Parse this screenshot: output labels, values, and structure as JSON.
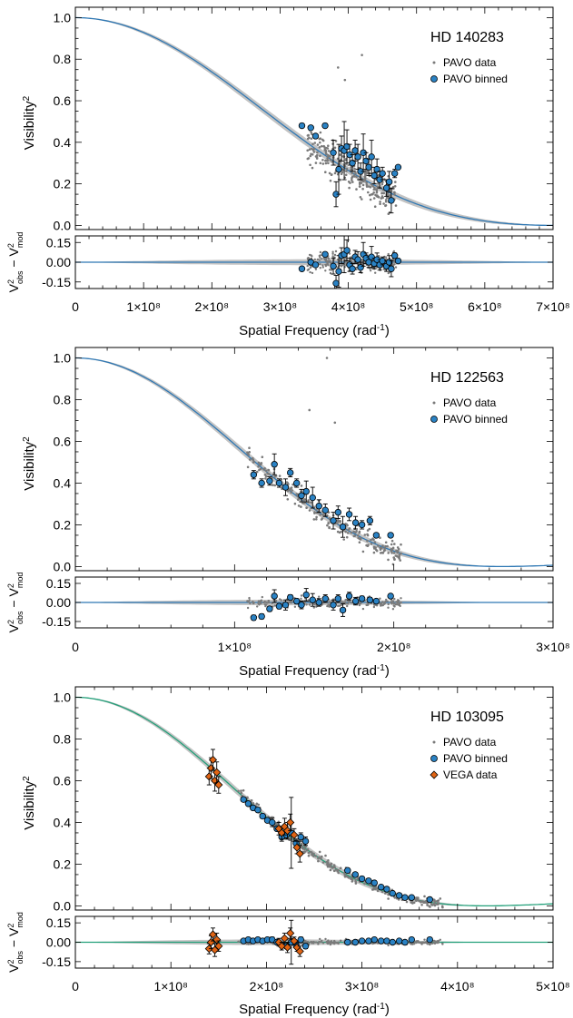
{
  "figure": {
    "legend_labels": {
      "pavo_data": "PAVO data",
      "pavo_binned": "PAVO binned",
      "vega_data": "VEGA data"
    },
    "y_label": "Visibility",
    "y_label_sup": "2",
    "res_label": {
      "v": "V",
      "sup": "2",
      "obs": "obs",
      "minus": " − ",
      "mod": "mod"
    },
    "x_label": "Spatial Frequency (rad",
    "x_label_sup": "-1",
    "x_label_close": ")",
    "colors": {
      "model_blue": "#2f78b4",
      "model_green": "#23a07a",
      "band": "#b8b8b8",
      "pavo_points": "#7a7a7a",
      "binned_fill": "#2a82c4",
      "vega_fill": "#e06414"
    }
  },
  "chart_data": [
    {
      "type": "scatter",
      "title": "HD 140283",
      "xlim": [
        0,
        700000000
      ],
      "ylim": [
        -0.02,
        1.05
      ],
      "res_ylim": [
        -0.2,
        0.2
      ],
      "x_ticks": [
        0,
        100000000,
        200000000,
        300000000,
        400000000,
        500000000,
        600000000,
        700000000
      ],
      "x_tick_labels": [
        "0",
        "1×10⁸",
        "2×10⁸",
        "3×10⁸",
        "4×10⁸",
        "5×10⁸",
        "6×10⁸",
        "7×10⁸"
      ],
      "y_ticks": [
        0.0,
        0.2,
        0.4,
        0.6,
        0.8,
        1.0
      ],
      "y_tick_labels": [
        "0.0",
        "0.2",
        "0.4",
        "0.6",
        "0.8",
        "1.0"
      ],
      "res_ticks": [
        0.15,
        0.0,
        -0.15
      ],
      "res_tick_labels": [
        "0.15",
        "0.00",
        "-0.15"
      ],
      "model": {
        "curve": "uniform_disk",
        "zero_freq": 705000000,
        "color": "model_blue"
      },
      "legend": [
        "pavo_data",
        "pavo_binned"
      ],
      "pavo_data": {
        "x_range": [
          340000000,
          470000000
        ],
        "y_center_from_model": true,
        "scatter": 0.09,
        "count": 260,
        "outliers": [
          [
            420000000,
            0.82
          ],
          [
            385000000,
            0.76
          ],
          [
            395000000,
            0.7
          ]
        ]
      },
      "pavo_binned": [
        {
          "x": 332000000,
          "y": 0.48,
          "err": 0.01,
          "res": -0.05
        },
        {
          "x": 345000000,
          "y": 0.47,
          "err": 0.01,
          "res": 0.0
        },
        {
          "x": 352000000,
          "y": 0.43,
          "err": 0.01,
          "res": -0.02
        },
        {
          "x": 366000000,
          "y": 0.48,
          "err": 0.01,
          "res": 0.06
        },
        {
          "x": 378000000,
          "y": 0.35,
          "err": 0.06,
          "res": -0.03
        },
        {
          "x": 382000000,
          "y": 0.15,
          "err": 0.06,
          "res": -0.16
        },
        {
          "x": 386000000,
          "y": 0.27,
          "err": 0.12,
          "res": -0.07
        },
        {
          "x": 390000000,
          "y": 0.37,
          "err": 0.06,
          "res": 0.05
        },
        {
          "x": 394000000,
          "y": 0.36,
          "err": 0.14,
          "res": 0.06
        },
        {
          "x": 398000000,
          "y": 0.38,
          "err": 0.08,
          "res": 0.09
        },
        {
          "x": 402000000,
          "y": 0.34,
          "err": 0.05,
          "res": -0.02
        },
        {
          "x": 406000000,
          "y": 0.3,
          "err": 0.04,
          "res": -0.05
        },
        {
          "x": 410000000,
          "y": 0.36,
          "err": 0.05,
          "res": 0.04
        },
        {
          "x": 414000000,
          "y": 0.33,
          "err": 0.06,
          "res": 0.02
        },
        {
          "x": 418000000,
          "y": 0.26,
          "err": 0.04,
          "res": -0.04
        },
        {
          "x": 422000000,
          "y": 0.35,
          "err": 0.09,
          "res": 0.06
        },
        {
          "x": 426000000,
          "y": 0.31,
          "err": 0.04,
          "res": 0.03
        },
        {
          "x": 430000000,
          "y": 0.28,
          "err": 0.04,
          "res": 0.0
        },
        {
          "x": 434000000,
          "y": 0.33,
          "err": 0.08,
          "res": 0.04
        },
        {
          "x": 438000000,
          "y": 0.24,
          "err": 0.04,
          "res": -0.01
        },
        {
          "x": 442000000,
          "y": 0.27,
          "err": 0.05,
          "res": 0.02
        },
        {
          "x": 446000000,
          "y": 0.22,
          "err": 0.04,
          "res": -0.02
        },
        {
          "x": 450000000,
          "y": 0.25,
          "err": 0.03,
          "res": 0.01
        },
        {
          "x": 456000000,
          "y": 0.18,
          "err": 0.04,
          "res": -0.03
        },
        {
          "x": 460000000,
          "y": 0.21,
          "err": 0.05,
          "res": 0.0
        },
        {
          "x": 463000000,
          "y": 0.12,
          "err": 0.06,
          "res": -0.05
        },
        {
          "x": 468000000,
          "y": 0.25,
          "err": 0.02,
          "res": 0.05
        },
        {
          "x": 473000000,
          "y": 0.28,
          "err": 0.01,
          "res": 0.01
        }
      ]
    },
    {
      "type": "scatter",
      "title": "HD 122563",
      "xlim": [
        0,
        300000000
      ],
      "ylim": [
        -0.02,
        1.05
      ],
      "res_ylim": [
        -0.2,
        0.2
      ],
      "x_ticks": [
        0,
        100000000,
        200000000,
        300000000
      ],
      "x_tick_labels": [
        "0",
        "1×10⁸",
        "2×10⁸",
        "3×10⁸"
      ],
      "y_ticks": [
        0.0,
        0.2,
        0.4,
        0.6,
        0.8,
        1.0
      ],
      "y_tick_labels": [
        "0.0",
        "0.2",
        "0.4",
        "0.6",
        "0.8",
        "1.0"
      ],
      "res_ticks": [
        0.15,
        0.0,
        -0.15
      ],
      "res_tick_labels": [
        "0.15",
        "0.00",
        "-0.15"
      ],
      "model": {
        "curve": "uniform_disk",
        "zero_freq": 268000000,
        "color": "model_blue"
      },
      "legend": [
        "pavo_data",
        "pavo_binned"
      ],
      "pavo_data": {
        "x_range": [
          108000000,
          205000000
        ],
        "y_center_from_model": true,
        "scatter": 0.05,
        "count": 230,
        "outliers": [
          [
            158000000,
            1.0
          ],
          [
            147000000,
            0.75
          ],
          [
            163000000,
            0.69
          ]
        ]
      },
      "pavo_binned": [
        {
          "x": 112000000,
          "y": 0.44,
          "err": 0.02,
          "res": -0.12
        },
        {
          "x": 117000000,
          "y": 0.4,
          "err": 0.02,
          "res": -0.11
        },
        {
          "x": 122000000,
          "y": 0.41,
          "err": 0.02,
          "res": -0.05
        },
        {
          "x": 125000000,
          "y": 0.49,
          "err": 0.05,
          "res": 0.05
        },
        {
          "x": 128000000,
          "y": 0.4,
          "err": 0.02,
          "res": -0.03
        },
        {
          "x": 132000000,
          "y": 0.38,
          "err": 0.04,
          "res": -0.02
        },
        {
          "x": 135000000,
          "y": 0.45,
          "err": 0.02,
          "res": 0.04
        },
        {
          "x": 139000000,
          "y": 0.4,
          "err": 0.02,
          "res": 0.01
        },
        {
          "x": 142000000,
          "y": 0.34,
          "err": 0.03,
          "res": -0.02
        },
        {
          "x": 145000000,
          "y": 0.36,
          "err": 0.05,
          "res": 0.06
        },
        {
          "x": 149000000,
          "y": 0.33,
          "err": 0.05,
          "res": 0.02
        },
        {
          "x": 153000000,
          "y": 0.29,
          "err": 0.03,
          "res": 0.0
        },
        {
          "x": 157000000,
          "y": 0.27,
          "err": 0.03,
          "res": 0.03
        },
        {
          "x": 162000000,
          "y": 0.22,
          "err": 0.04,
          "res": -0.02
        },
        {
          "x": 165000000,
          "y": 0.26,
          "err": 0.03,
          "res": 0.03
        },
        {
          "x": 168000000,
          "y": 0.19,
          "err": 0.05,
          "res": -0.06
        },
        {
          "x": 172000000,
          "y": 0.25,
          "err": 0.03,
          "res": 0.05
        },
        {
          "x": 176000000,
          "y": 0.21,
          "err": 0.03,
          "res": 0.01
        },
        {
          "x": 180000000,
          "y": 0.2,
          "err": 0.02,
          "res": 0.03
        },
        {
          "x": 185000000,
          "y": 0.22,
          "err": 0.02,
          "res": 0.02
        },
        {
          "x": 189000000,
          "y": 0.15,
          "err": 0.01,
          "res": 0.01
        },
        {
          "x": 198000000,
          "y": 0.15,
          "err": 0.01,
          "res": 0.05
        }
      ]
    },
    {
      "type": "scatter",
      "title": "HD 103095",
      "xlim": [
        0,
        500000000
      ],
      "ylim": [
        -0.02,
        1.05
      ],
      "res_ylim": [
        -0.2,
        0.2
      ],
      "x_ticks": [
        0,
        100000000,
        200000000,
        300000000,
        400000000,
        500000000
      ],
      "x_tick_labels": [
        "0",
        "1×10⁸",
        "2×10⁸",
        "3×10⁸",
        "4×10⁸",
        "5×10⁸"
      ],
      "y_ticks": [
        0.0,
        0.2,
        0.4,
        0.6,
        0.8,
        1.0
      ],
      "y_tick_labels": [
        "0.0",
        "0.2",
        "0.4",
        "0.6",
        "0.8",
        "1.0"
      ],
      "res_ticks": [
        0.15,
        0.0,
        -0.15
      ],
      "res_tick_labels": [
        "0.15",
        "0.00",
        "-0.15"
      ],
      "model": {
        "curve": "uniform_disk",
        "zero_freq": 430000000,
        "color": "model_green"
      },
      "legend": [
        "pavo_data",
        "pavo_binned",
        "vega_data"
      ],
      "pavo_data": {
        "x_range": [
          170000000,
          385000000
        ],
        "y_center_from_model": true,
        "scatter": 0.025,
        "count": 260,
        "outliers": []
      },
      "pavo_binned": [
        {
          "x": 176000000,
          "y": 0.51,
          "err": 0.01,
          "res": 0.01
        },
        {
          "x": 181000000,
          "y": 0.49,
          "err": 0.01,
          "res": 0.02
        },
        {
          "x": 186000000,
          "y": 0.47,
          "err": 0.01,
          "res": 0.01
        },
        {
          "x": 191000000,
          "y": 0.46,
          "err": 0.01,
          "res": 0.02
        },
        {
          "x": 196000000,
          "y": 0.43,
          "err": 0.01,
          "res": 0.01
        },
        {
          "x": 201000000,
          "y": 0.41,
          "err": 0.01,
          "res": 0.02
        },
        {
          "x": 206000000,
          "y": 0.4,
          "err": 0.02,
          "res": 0.02
        },
        {
          "x": 211000000,
          "y": 0.37,
          "err": 0.01,
          "res": 0.0
        },
        {
          "x": 216000000,
          "y": 0.33,
          "err": 0.02,
          "res": -0.02
        },
        {
          "x": 221000000,
          "y": 0.34,
          "err": 0.02,
          "res": -0.03
        },
        {
          "x": 226000000,
          "y": 0.35,
          "err": 0.17,
          "res": 0.0
        },
        {
          "x": 231000000,
          "y": 0.3,
          "err": 0.02,
          "res": -0.02
        },
        {
          "x": 236000000,
          "y": 0.33,
          "err": 0.02,
          "res": 0.02
        },
        {
          "x": 241000000,
          "y": 0.31,
          "err": 0.02,
          "res": -0.03
        },
        {
          "x": 285000000,
          "y": 0.17,
          "err": 0.01,
          "res": 0.0
        },
        {
          "x": 293000000,
          "y": 0.15,
          "err": 0.01,
          "res": 0.0
        },
        {
          "x": 300000000,
          "y": 0.13,
          "err": 0.01,
          "res": 0.01
        },
        {
          "x": 307000000,
          "y": 0.12,
          "err": 0.01,
          "res": 0.01
        },
        {
          "x": 313000000,
          "y": 0.11,
          "err": 0.01,
          "res": 0.02
        },
        {
          "x": 320000000,
          "y": 0.09,
          "err": 0.01,
          "res": 0.01
        },
        {
          "x": 326000000,
          "y": 0.08,
          "err": 0.01,
          "res": 0.01
        },
        {
          "x": 332000000,
          "y": 0.06,
          "err": 0.01,
          "res": 0.0
        },
        {
          "x": 339000000,
          "y": 0.05,
          "err": 0.01,
          "res": 0.01
        },
        {
          "x": 345000000,
          "y": 0.04,
          "err": 0.01,
          "res": 0.0
        },
        {
          "x": 352000000,
          "y": 0.04,
          "err": 0.01,
          "res": 0.02
        },
        {
          "x": 371000000,
          "y": 0.03,
          "err": 0.01,
          "res": 0.02
        }
      ],
      "vega_data": [
        {
          "x": 140000000,
          "y": 0.62,
          "err": 0.04,
          "res": -0.05
        },
        {
          "x": 142000000,
          "y": 0.66,
          "err": 0.05,
          "res": 0.0
        },
        {
          "x": 144000000,
          "y": 0.7,
          "err": 0.05,
          "res": 0.06
        },
        {
          "x": 146000000,
          "y": 0.6,
          "err": 0.05,
          "res": -0.06
        },
        {
          "x": 148000000,
          "y": 0.64,
          "err": 0.05,
          "res": 0.02
        },
        {
          "x": 150000000,
          "y": 0.58,
          "err": 0.04,
          "res": -0.03
        },
        {
          "x": 213000000,
          "y": 0.37,
          "err": 0.03,
          "res": 0.0
        },
        {
          "x": 216000000,
          "y": 0.35,
          "err": 0.03,
          "res": -0.03
        },
        {
          "x": 219000000,
          "y": 0.38,
          "err": 0.04,
          "res": 0.03
        },
        {
          "x": 222000000,
          "y": 0.36,
          "err": 0.04,
          "res": -0.04
        },
        {
          "x": 225000000,
          "y": 0.4,
          "err": 0.04,
          "res": 0.07
        },
        {
          "x": 229000000,
          "y": 0.34,
          "err": 0.03,
          "res": 0.01
        },
        {
          "x": 232000000,
          "y": 0.28,
          "err": 0.03,
          "res": -0.04
        },
        {
          "x": 235000000,
          "y": 0.25,
          "err": 0.04,
          "res": -0.07
        }
      ]
    }
  ]
}
